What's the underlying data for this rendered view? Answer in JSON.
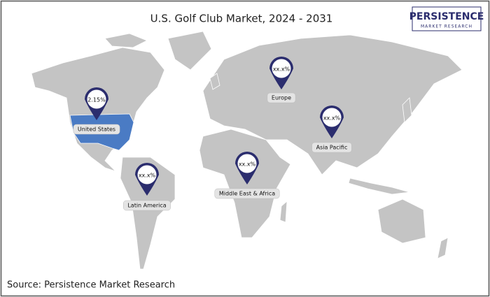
{
  "title": "U.S. Golf Club Market,  2024 - 2031",
  "logo": {
    "name": "PERSISTENCE",
    "tagline": "MARKET RESEARCH"
  },
  "markers": [
    {
      "value": "2.15%",
      "label": "United States"
    },
    {
      "value": "xx.x%",
      "label": "Europe"
    },
    {
      "value": "xx.x%",
      "label": "Asia Pacific"
    },
    {
      "value": "xx.x%",
      "label": "Middle East & Africa"
    },
    {
      "value": "xx.x%",
      "label": "Latin America"
    }
  ],
  "source": "Source: Persistence Market Research"
}
